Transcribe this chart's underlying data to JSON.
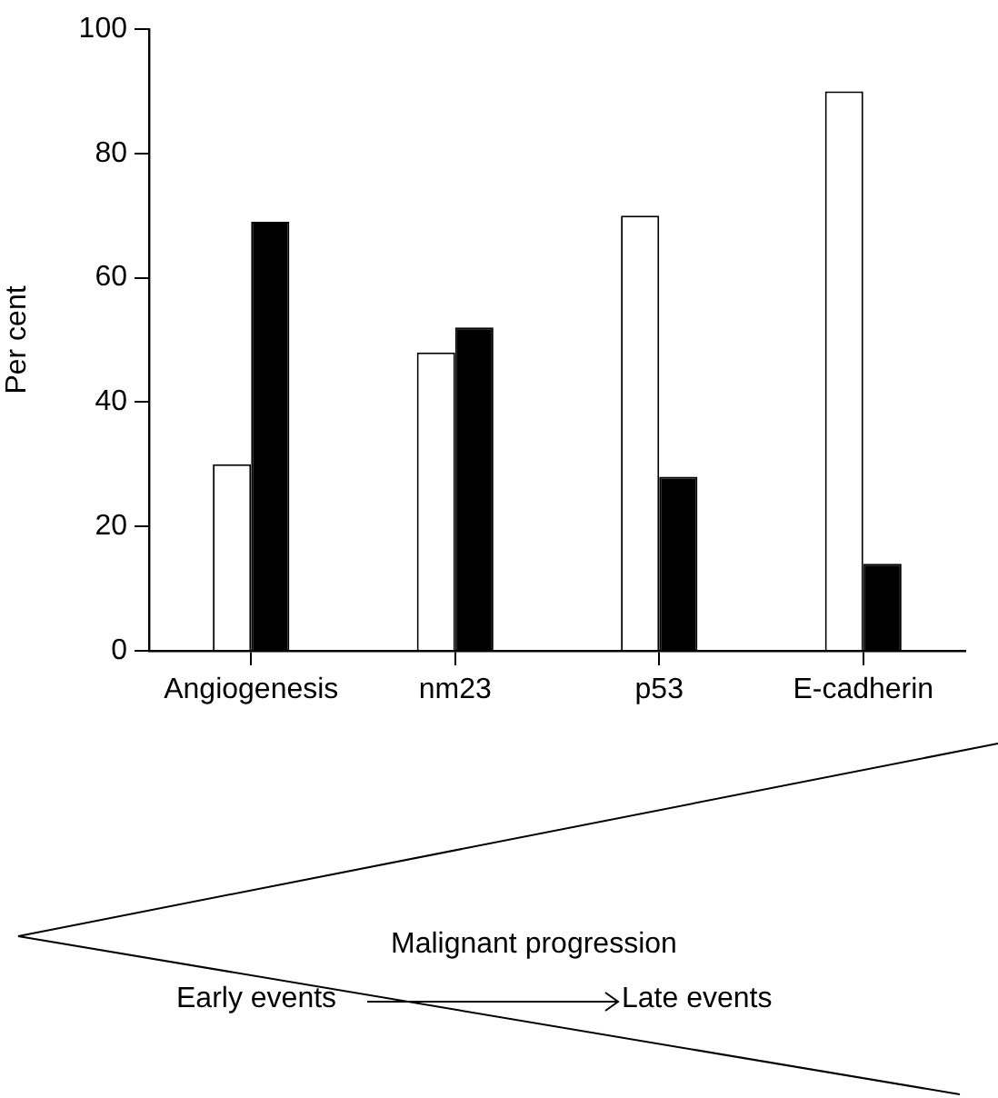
{
  "chart_data": {
    "type": "bar",
    "ylabel": "Per cent",
    "categories": [
      "Angiogenesis",
      "nm23",
      "p53",
      "E-cadherin"
    ],
    "series": [
      {
        "color": "#ffffff",
        "values": [
          30,
          48,
          70,
          90
        ]
      },
      {
        "color": "#000000",
        "values": [
          69,
          52,
          28,
          14
        ]
      }
    ],
    "ylim": [
      0,
      100
    ],
    "yticks": [
      0,
      20,
      40,
      60,
      80,
      100
    ],
    "grid": false,
    "legend": false,
    "annotations": [
      "Malignant progression",
      "Early events",
      "Late events"
    ]
  }
}
